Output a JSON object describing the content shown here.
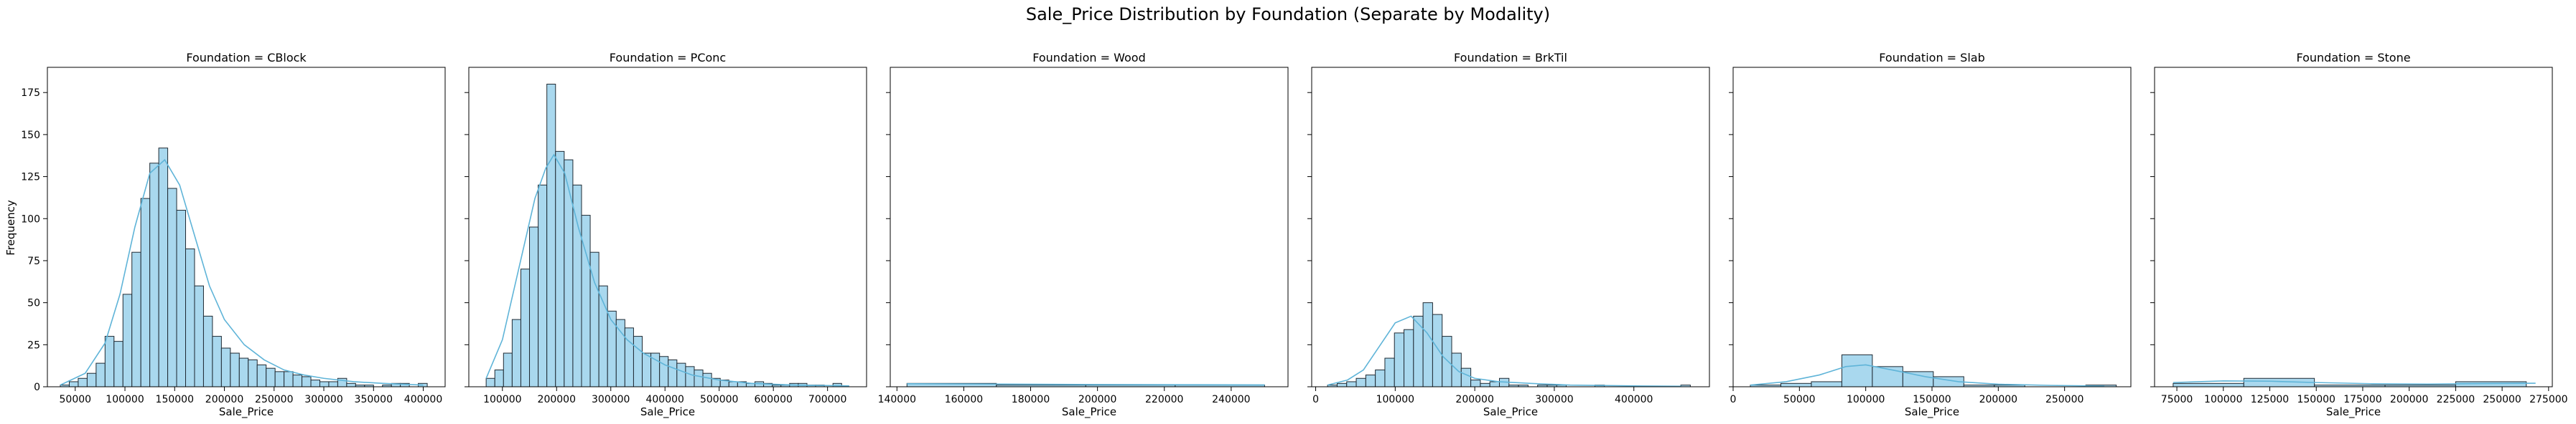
{
  "figure": {
    "suptitle": "Sale_Price Distribution by Foundation (Separate by Modality)",
    "ylabel": "Frequency",
    "xlabel": "Sale_Price"
  },
  "colors": {
    "bar_fill": "#a9d8ee",
    "bar_edge": "#1f2a33",
    "kde_line": "#5fb4d8"
  },
  "chart_data": [
    {
      "type": "bar",
      "title": "Foundation = CBlock",
      "xlabel": "Sale_Price",
      "ylabel": "Frequency",
      "xlim": [
        22000,
        422000
      ],
      "ylim": [
        0,
        190
      ],
      "xticks": [
        50000,
        100000,
        150000,
        200000,
        250000,
        300000,
        350000,
        400000
      ],
      "yticks": [
        0,
        25,
        50,
        75,
        100,
        125,
        150,
        175
      ],
      "bin_start": 35000,
      "bin_width": 9000,
      "counts": [
        1,
        3,
        5,
        8,
        14,
        30,
        27,
        55,
        80,
        112,
        133,
        142,
        118,
        105,
        82,
        60,
        42,
        30,
        23,
        20,
        17,
        16,
        13,
        11,
        9,
        9,
        7,
        6,
        4,
        3,
        3,
        5,
        2,
        1,
        1,
        0,
        1,
        2,
        2,
        0,
        2
      ],
      "kde": [
        [
          35000,
          1
        ],
        [
          60000,
          8
        ],
        [
          80000,
          26
        ],
        [
          95000,
          55
        ],
        [
          110000,
          95
        ],
        [
          125000,
          127
        ],
        [
          140000,
          135
        ],
        [
          155000,
          120
        ],
        [
          170000,
          90
        ],
        [
          185000,
          60
        ],
        [
          200000,
          40
        ],
        [
          220000,
          25
        ],
        [
          240000,
          16
        ],
        [
          260000,
          10
        ],
        [
          280000,
          7
        ],
        [
          300000,
          5
        ],
        [
          330000,
          3
        ],
        [
          360000,
          2
        ],
        [
          400000,
          1
        ]
      ]
    },
    {
      "type": "bar",
      "title": "Foundation = PConc",
      "xlabel": "Sale_Price",
      "ylim": [
        0,
        190
      ],
      "xlim": [
        38000,
        772000
      ],
      "xticks": [
        100000,
        200000,
        300000,
        400000,
        500000,
        600000,
        700000
      ],
      "yticks": [
        0,
        25,
        50,
        75,
        100,
        125,
        150,
        175
      ],
      "bin_start": 70000,
      "bin_width": 16000,
      "counts": [
        5,
        10,
        20,
        40,
        70,
        95,
        120,
        180,
        140,
        135,
        120,
        102,
        80,
        60,
        45,
        40,
        35,
        30,
        20,
        20,
        18,
        16,
        14,
        12,
        10,
        8,
        5,
        4,
        3,
        3,
        2,
        3,
        2,
        1,
        1,
        2,
        2,
        1,
        1,
        0,
        2
      ],
      "kde": [
        [
          70000,
          5
        ],
        [
          100000,
          28
        ],
        [
          130000,
          70
        ],
        [
          160000,
          112
        ],
        [
          180000,
          130
        ],
        [
          195000,
          138
        ],
        [
          215000,
          127
        ],
        [
          240000,
          95
        ],
        [
          270000,
          62
        ],
        [
          300000,
          40
        ],
        [
          330000,
          28
        ],
        [
          360000,
          20
        ],
        [
          400000,
          13
        ],
        [
          450000,
          7
        ],
        [
          500000,
          4
        ],
        [
          560000,
          2
        ],
        [
          640000,
          1
        ],
        [
          740000,
          0.5
        ]
      ]
    },
    {
      "type": "bar",
      "title": "Foundation = Wood",
      "xlabel": "Sale_Price",
      "ylim": [
        0,
        190
      ],
      "xlim": [
        138000,
        257000
      ],
      "xticks": [
        140000,
        160000,
        180000,
        200000,
        220000,
        240000
      ],
      "yticks": [
        0,
        25,
        50,
        75,
        100,
        125,
        150,
        175
      ],
      "bin_start": 143000,
      "bin_width": 26750,
      "counts": [
        2,
        1,
        1,
        1
      ],
      "kde": [
        [
          143000,
          1.8
        ],
        [
          170000,
          1.6
        ],
        [
          200000,
          1.3
        ],
        [
          230000,
          1.2
        ],
        [
          250000,
          1.1
        ]
      ]
    },
    {
      "type": "bar",
      "title": "Foundation = BrkTil",
      "xlabel": "Sale_Price",
      "ylim": [
        0,
        190
      ],
      "xlim": [
        -5000,
        495000
      ],
      "xticks": [
        0,
        100000,
        200000,
        300000,
        400000
      ],
      "yticks": [
        0,
        25,
        50,
        75,
        100,
        125,
        150,
        175
      ],
      "bin_start": 15000,
      "bin_width": 12000,
      "counts": [
        1,
        2,
        3,
        5,
        7,
        10,
        17,
        32,
        34,
        42,
        50,
        43,
        30,
        20,
        11,
        4,
        2,
        3,
        5,
        1,
        1,
        0,
        1,
        1,
        1,
        0,
        0,
        0,
        1,
        0,
        0,
        0,
        0,
        0,
        0,
        0,
        0,
        1
      ],
      "kde": [
        [
          15000,
          1
        ],
        [
          40000,
          4
        ],
        [
          60000,
          10
        ],
        [
          80000,
          24
        ],
        [
          100000,
          38
        ],
        [
          120000,
          42
        ],
        [
          140000,
          32
        ],
        [
          160000,
          18
        ],
        [
          180000,
          9
        ],
        [
          200000,
          5
        ],
        [
          230000,
          3
        ],
        [
          270000,
          2
        ],
        [
          320000,
          1
        ],
        [
          400000,
          0.5
        ],
        [
          460000,
          0.3
        ]
      ]
    },
    {
      "type": "bar",
      "title": "Foundation = Slab",
      "xlabel": "Sale_Price",
      "ylim": [
        0,
        190
      ],
      "xlim": [
        0,
        300000
      ],
      "xticks": [
        0,
        50000,
        100000,
        150000,
        200000,
        250000
      ],
      "yticks": [
        0,
        25,
        50,
        75,
        100,
        125,
        150,
        175
      ],
      "bin_start": 13000,
      "bin_width": 23000,
      "counts": [
        1,
        2,
        3,
        19,
        12,
        9,
        6,
        1,
        1,
        0,
        0,
        1
      ],
      "kde": [
        [
          13000,
          1
        ],
        [
          40000,
          3
        ],
        [
          65000,
          7
        ],
        [
          85000,
          12
        ],
        [
          100000,
          13
        ],
        [
          120000,
          10
        ],
        [
          145000,
          6
        ],
        [
          170000,
          3
        ],
        [
          200000,
          1.5
        ],
        [
          240000,
          0.8
        ],
        [
          280000,
          0.4
        ]
      ]
    },
    {
      "type": "bar",
      "title": "Foundation = Stone",
      "xlabel": "Sale_Price",
      "ylim": [
        0,
        190
      ],
      "xlim": [
        63000,
        277000
      ],
      "xticks": [
        75000,
        100000,
        125000,
        150000,
        175000,
        200000,
        225000,
        250000,
        275000
      ],
      "yticks": [
        0,
        25,
        50,
        75,
        100,
        125,
        150,
        175
      ],
      "bin_start": 73000,
      "bin_width": 38000,
      "counts": [
        2,
        5,
        1,
        1,
        3
      ],
      "kde": [
        [
          73000,
          2.5
        ],
        [
          100000,
          3.5
        ],
        [
          125000,
          3.3
        ],
        [
          150000,
          2.5
        ],
        [
          180000,
          1.8
        ],
        [
          210000,
          1.6
        ],
        [
          240000,
          1.9
        ],
        [
          268000,
          2.1
        ]
      ]
    }
  ]
}
